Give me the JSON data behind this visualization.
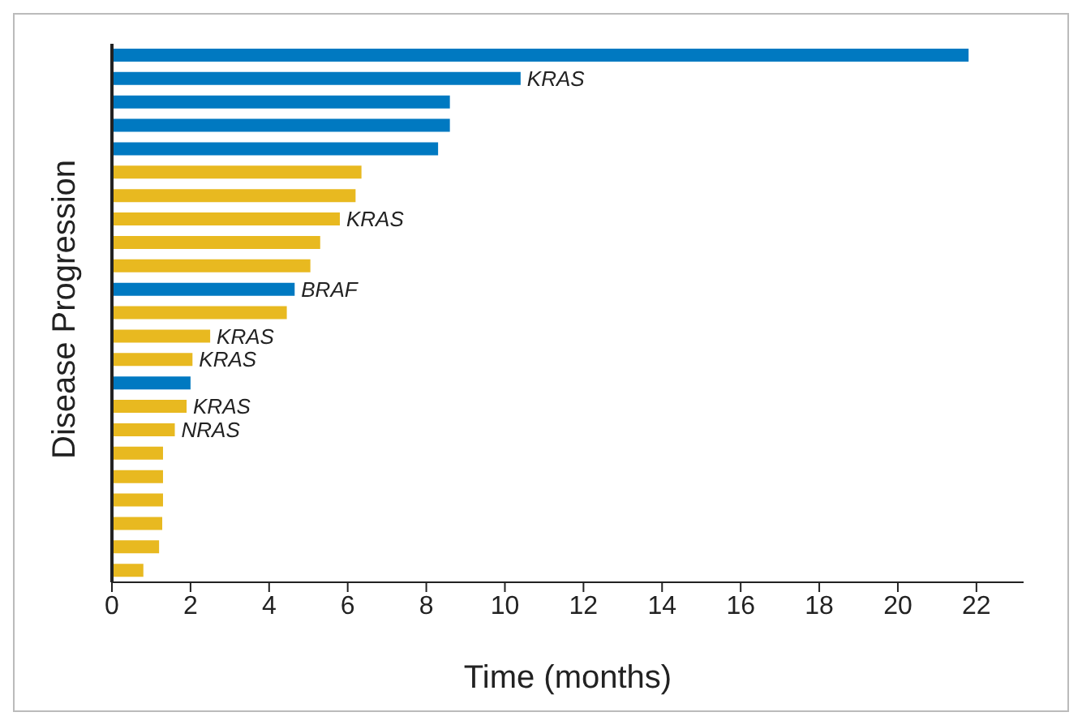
{
  "chart_data": {
    "type": "bar",
    "orientation": "horizontal",
    "xlabel": "Time (months)",
    "ylabel": "Disease Progression",
    "categories": [
      null,
      null,
      null,
      null,
      null,
      null,
      null,
      null,
      null,
      null,
      null,
      null,
      null,
      null,
      null,
      null,
      null,
      null,
      null,
      null,
      null,
      null,
      null
    ],
    "values": [
      21.8,
      10.4,
      8.6,
      8.6,
      8.3,
      6.35,
      6.2,
      5.8,
      5.3,
      5.05,
      4.65,
      4.45,
      2.5,
      2.05,
      2.0,
      1.9,
      1.6,
      1.3,
      1.3,
      1.3,
      1.28,
      1.2,
      0.8
    ],
    "colors": [
      "#0079c1",
      "#0079c1",
      "#0079c1",
      "#0079c1",
      "#0079c1",
      "#e8b920",
      "#e8b920",
      "#e8b920",
      "#e8b920",
      "#e8b920",
      "#0079c1",
      "#e8b920",
      "#e8b920",
      "#e8b920",
      "#0079c1",
      "#e8b920",
      "#e8b920",
      "#e8b920",
      "#e8b920",
      "#e8b920",
      "#e8b920",
      "#e8b920",
      "#e8b920"
    ],
    "value_labels": [
      null,
      "KRAS",
      null,
      null,
      null,
      null,
      null,
      "KRAS",
      null,
      null,
      "BRAF",
      null,
      "KRAS",
      "KRAS",
      null,
      "KRAS",
      "NRAS",
      null,
      null,
      null,
      null,
      null,
      null
    ],
    "xlim": [
      0,
      23.2
    ],
    "xticks": [
      0,
      2,
      4,
      6,
      8,
      10,
      12,
      14,
      16,
      18,
      20,
      22
    ],
    "tick_labels": "x",
    "grid": false
  }
}
